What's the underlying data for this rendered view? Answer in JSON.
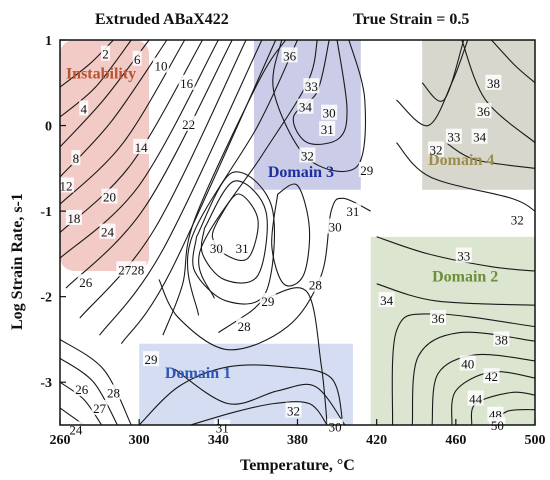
{
  "header": {
    "material": "Extruded ABaX422",
    "strain": "True Strain = 0.5"
  },
  "chart_data": {
    "type": "contour",
    "xlabel": "Temperature, °C",
    "ylabel": "Log Strain Rate, s-1",
    "xlim": [
      260,
      500
    ],
    "ylim": [
      -3.5,
      1
    ],
    "xticks": [
      260,
      300,
      340,
      380,
      420,
      460,
      500
    ],
    "yticks": [
      -3,
      -2,
      -1,
      0,
      1
    ],
    "regions": [
      {
        "name": "Instability",
        "color": "#e9a9a1",
        "text_color": "#b8522f",
        "x": [
          260,
          305
        ],
        "y": [
          -1.7,
          1
        ],
        "label_at": [
          263,
          0.55
        ]
      },
      {
        "name": "Domain 3",
        "color": "#a9abd9",
        "text_color": "#1f2f9e",
        "x": [
          358,
          412
        ],
        "y": [
          -0.75,
          1
        ],
        "label_at": [
          365,
          -0.6
        ]
      },
      {
        "name": "Domain 4",
        "color": "#bdbdad",
        "text_color": "#9c8e4e",
        "x": [
          443,
          500
        ],
        "y": [
          -0.75,
          1
        ],
        "label_at": [
          446,
          -0.46
        ]
      },
      {
        "name": "Domain 2",
        "color": "#c4d4af",
        "text_color": "#6d8e3a",
        "x": [
          417,
          500
        ],
        "y": [
          -3.5,
          -1.3
        ],
        "label_at": [
          448,
          -1.82
        ]
      },
      {
        "name": "Domain 1",
        "color": "#b9c6ea",
        "text_color": "#2f55b8",
        "x": [
          300,
          408
        ],
        "y": [
          -3.5,
          -2.55
        ],
        "label_at": [
          313,
          -2.95
        ]
      }
    ],
    "contour_labels": [
      {
        "text": "2",
        "x": 283,
        "y": 0.84
      },
      {
        "text": "6",
        "x": 299,
        "y": 0.78
      },
      {
        "text": "10",
        "x": 311,
        "y": 0.7
      },
      {
        "text": "16",
        "x": 324,
        "y": 0.5
      },
      {
        "text": "4",
        "x": 272,
        "y": 0.2
      },
      {
        "text": "14",
        "x": 301,
        "y": -0.25
      },
      {
        "text": "22",
        "x": 325,
        "y": 0.02
      },
      {
        "text": "8",
        "x": 268,
        "y": -0.38
      },
      {
        "text": "12",
        "x": 263,
        "y": -0.7
      },
      {
        "text": "20",
        "x": 285,
        "y": -0.83
      },
      {
        "text": "18",
        "x": 267,
        "y": -1.08
      },
      {
        "text": "24",
        "x": 284,
        "y": -1.24
      },
      {
        "text": "2728",
        "x": 296,
        "y": -1.68
      },
      {
        "text": "26",
        "x": 273,
        "y": -1.83
      },
      {
        "text": "36",
        "x": 376,
        "y": 0.82
      },
      {
        "text": "33",
        "x": 387,
        "y": 0.46
      },
      {
        "text": "34",
        "x": 384,
        "y": 0.22
      },
      {
        "text": "30",
        "x": 396,
        "y": 0.15
      },
      {
        "text": "31",
        "x": 395,
        "y": -0.04
      },
      {
        "text": "32",
        "x": 385,
        "y": -0.35
      },
      {
        "text": "29",
        "x": 415,
        "y": -0.52
      },
      {
        "text": "31",
        "x": 408,
        "y": -1.0
      },
      {
        "text": "30",
        "x": 399,
        "y": -1.18
      },
      {
        "text": "30",
        "x": 339,
        "y": -1.43
      },
      {
        "text": "31",
        "x": 352,
        "y": -1.43
      },
      {
        "text": "28",
        "x": 389,
        "y": -1.86
      },
      {
        "text": "29",
        "x": 365,
        "y": -2.05
      },
      {
        "text": "28",
        "x": 353,
        "y": -2.34
      },
      {
        "text": "38",
        "x": 479,
        "y": 0.5
      },
      {
        "text": "36",
        "x": 474,
        "y": 0.17
      },
      {
        "text": "32",
        "x": 450,
        "y": -0.28
      },
      {
        "text": "33",
        "x": 459,
        "y": -0.13
      },
      {
        "text": "34",
        "x": 472,
        "y": -0.13
      },
      {
        "text": "32",
        "x": 491,
        "y": -1.1
      },
      {
        "text": "33",
        "x": 464,
        "y": -1.52
      },
      {
        "text": "34",
        "x": 425,
        "y": -2.04
      },
      {
        "text": "36",
        "x": 451,
        "y": -2.25
      },
      {
        "text": "38",
        "x": 483,
        "y": -2.5
      },
      {
        "text": "40",
        "x": 466,
        "y": -2.78
      },
      {
        "text": "42",
        "x": 478,
        "y": -2.93
      },
      {
        "text": "44",
        "x": 470,
        "y": -3.19
      },
      {
        "text": "48",
        "x": 480,
        "y": -3.38
      },
      {
        "text": "50",
        "x": 481,
        "y": -3.5
      },
      {
        "text": "29",
        "x": 306,
        "y": -2.73
      },
      {
        "text": "26",
        "x": 271,
        "y": -3.08
      },
      {
        "text": "28",
        "x": 287,
        "y": -3.12
      },
      {
        "text": "27",
        "x": 280,
        "y": -3.3
      },
      {
        "text": "24",
        "x": 268,
        "y": -3.55
      },
      {
        "text": "31",
        "x": 342,
        "y": -3.53
      },
      {
        "text": "32",
        "x": 378,
        "y": -3.33
      },
      {
        "text": "30",
        "x": 399,
        "y": -3.52
      }
    ],
    "contour_lines": [
      [
        [
          260,
          0.45
        ],
        [
          275,
          0.72
        ],
        [
          287,
          1.0
        ]
      ],
      [
        [
          260,
          0.1
        ],
        [
          278,
          0.45
        ],
        [
          296,
          1.0
        ]
      ],
      [
        [
          260,
          -0.25
        ],
        [
          282,
          0.3
        ],
        [
          305,
          1.0
        ]
      ],
      [
        [
          260,
          -0.6
        ],
        [
          286,
          0.05
        ],
        [
          314,
          1.0
        ]
      ],
      [
        [
          260,
          -0.92
        ],
        [
          292,
          -0.2
        ],
        [
          323,
          1.0
        ]
      ],
      [
        [
          260,
          -1.25
        ],
        [
          296,
          -0.45
        ],
        [
          332,
          1.0
        ]
      ],
      [
        [
          260,
          -1.55
        ],
        [
          300,
          -0.7
        ],
        [
          340,
          1.0
        ]
      ],
      [
        [
          263,
          -1.9
        ],
        [
          303,
          -0.95
        ],
        [
          347,
          1.0
        ]
      ],
      [
        [
          270,
          -2.25
        ],
        [
          308,
          -1.2
        ],
        [
          354,
          1.0
        ]
      ],
      [
        [
          280,
          -2.45
        ],
        [
          312,
          -1.45
        ],
        [
          362,
          1.0
        ]
      ],
      [
        [
          291,
          -2.55
        ],
        [
          316,
          -1.7
        ],
        [
          369,
          1.0
        ]
      ],
      [
        [
          312,
          -2.45
        ],
        [
          322,
          -1.85
        ],
        [
          328,
          -1.1
        ],
        [
          360,
          0.5
        ],
        [
          374,
          1.0
        ]
      ],
      [
        [
          330,
          -2.22
        ],
        [
          326,
          -1.35
        ],
        [
          360,
          0.0
        ],
        [
          380,
          1.0
        ]
      ],
      [
        [
          338,
          -2.02
        ],
        [
          331,
          -1.45
        ],
        [
          362,
          -0.35
        ],
        [
          385,
          0.5
        ],
        [
          390,
          1.0
        ]
      ],
      [
        [
          396,
          1.0
        ],
        [
          390,
          0.4
        ],
        [
          378,
          0.1
        ],
        [
          385,
          -0.2
        ],
        [
          401,
          -0.15
        ],
        [
          405,
          0.2
        ],
        [
          400,
          1.0
        ]
      ],
      [
        [
          372,
          1.0
        ],
        [
          368,
          0.4
        ],
        [
          385,
          -0.38
        ],
        [
          410,
          -0.48
        ],
        [
          414,
          0.3
        ],
        [
          406,
          1.0
        ]
      ],
      [
        [
          340,
          -1.1
        ],
        [
          350,
          -0.8
        ],
        [
          360,
          -1.1
        ],
        [
          355,
          -1.55
        ],
        [
          343,
          -1.5
        ],
        [
          337,
          -1.3
        ],
        [
          340,
          -1.1
        ]
      ],
      [
        [
          333,
          -1.2
        ],
        [
          348,
          -0.65
        ],
        [
          364,
          -1.0
        ],
        [
          360,
          -1.75
        ],
        [
          343,
          -1.8
        ],
        [
          332,
          -1.5
        ],
        [
          333,
          -1.2
        ]
      ],
      [
        [
          329,
          -1.3
        ],
        [
          347,
          -0.55
        ],
        [
          367,
          -0.95
        ],
        [
          364,
          -1.95
        ],
        [
          344,
          -2.05
        ],
        [
          328,
          -1.7
        ],
        [
          329,
          -1.3
        ]
      ],
      [
        [
          370,
          -0.8
        ],
        [
          380,
          -0.7
        ],
        [
          386,
          -1.2
        ],
        [
          383,
          -1.75
        ],
        [
          373,
          -1.85
        ],
        [
          367,
          -1.4
        ],
        [
          370,
          -0.8
        ]
      ],
      [
        [
          310,
          -1.8
        ],
        [
          320,
          -2.25
        ],
        [
          345,
          -2.62
        ],
        [
          375,
          -2.35
        ],
        [
          392,
          -1.75
        ],
        [
          397,
          -1.0
        ],
        [
          403,
          -0.85
        ],
        [
          417,
          -1.0
        ]
      ],
      [
        [
          340,
          -2.42
        ],
        [
          356,
          -2.18
        ],
        [
          366,
          -2.0
        ],
        [
          385,
          -1.95
        ],
        [
          392,
          -2.8
        ],
        [
          395,
          -3.5
        ]
      ],
      [
        [
          318,
          -2.85
        ],
        [
          345,
          -3.25
        ],
        [
          370,
          -3.1
        ],
        [
          389,
          -3.05
        ],
        [
          404,
          -3.5
        ]
      ],
      [
        [
          326,
          -3.5
        ],
        [
          348,
          -3.35
        ],
        [
          368,
          -3.25
        ],
        [
          386,
          -3.25
        ],
        [
          395,
          -3.5
        ]
      ],
      [
        [
          300,
          -3.5
        ],
        [
          320,
          -3.05
        ],
        [
          345,
          -2.82
        ],
        [
          373,
          -2.82
        ],
        [
          397,
          -2.95
        ],
        [
          403,
          -3.5
        ]
      ],
      [
        [
          260,
          -2.5
        ],
        [
          282,
          -2.85
        ],
        [
          296,
          -3.5
        ]
      ],
      [
        [
          260,
          -2.72
        ],
        [
          277,
          -3.0
        ],
        [
          289,
          -3.5
        ]
      ],
      [
        [
          260,
          -3.0
        ],
        [
          272,
          -3.2
        ],
        [
          281,
          -3.5
        ]
      ],
      [
        [
          260,
          -3.3
        ],
        [
          266,
          -3.4
        ],
        [
          272,
          -3.5
        ]
      ],
      [
        [
          430,
          -0.2
        ],
        [
          447,
          -0.6
        ],
        [
          488,
          -0.85
        ],
        [
          500,
          -1.0
        ]
      ],
      [
        [
          430,
          0.3
        ],
        [
          446,
          0.0
        ],
        [
          458,
          0.5
        ],
        [
          466,
          1.0
        ]
      ],
      [
        [
          443,
          0.5
        ],
        [
          454,
          0.3
        ],
        [
          464,
          1.0
        ]
      ],
      [
        [
          455,
          -0.2
        ],
        [
          470,
          -0.4
        ],
        [
          500,
          -0.5
        ]
      ],
      [
        [
          463,
          1.0
        ],
        [
          475,
          0.3
        ],
        [
          500,
          -0.2
        ]
      ],
      [
        [
          478,
          1.0
        ],
        [
          490,
          0.7
        ],
        [
          500,
          0.5
        ]
      ],
      [
        [
          420,
          -1.3
        ],
        [
          446,
          -1.5
        ],
        [
          478,
          -1.65
        ],
        [
          500,
          -1.7
        ]
      ],
      [
        [
          420,
          -1.85
        ],
        [
          450,
          -2.05
        ],
        [
          500,
          -2.1
        ]
      ],
      [
        [
          428,
          -3.5
        ],
        [
          430,
          -2.4
        ],
        [
          448,
          -2.2
        ],
        [
          500,
          -2.35
        ]
      ],
      [
        [
          438,
          -3.5
        ],
        [
          441,
          -2.7
        ],
        [
          462,
          -2.42
        ],
        [
          500,
          -2.52
        ]
      ],
      [
        [
          448,
          -3.5
        ],
        [
          451,
          -2.9
        ],
        [
          470,
          -2.68
        ],
        [
          500,
          -2.75
        ]
      ],
      [
        [
          458,
          -3.5
        ],
        [
          460,
          -3.1
        ],
        [
          478,
          -2.88
        ],
        [
          500,
          -2.95
        ]
      ],
      [
        [
          468,
          -3.5
        ],
        [
          470,
          -3.25
        ],
        [
          488,
          -3.12
        ],
        [
          500,
          -3.15
        ]
      ],
      [
        [
          478,
          -3.5
        ],
        [
          486,
          -3.34
        ],
        [
          500,
          -3.32
        ]
      ]
    ]
  }
}
